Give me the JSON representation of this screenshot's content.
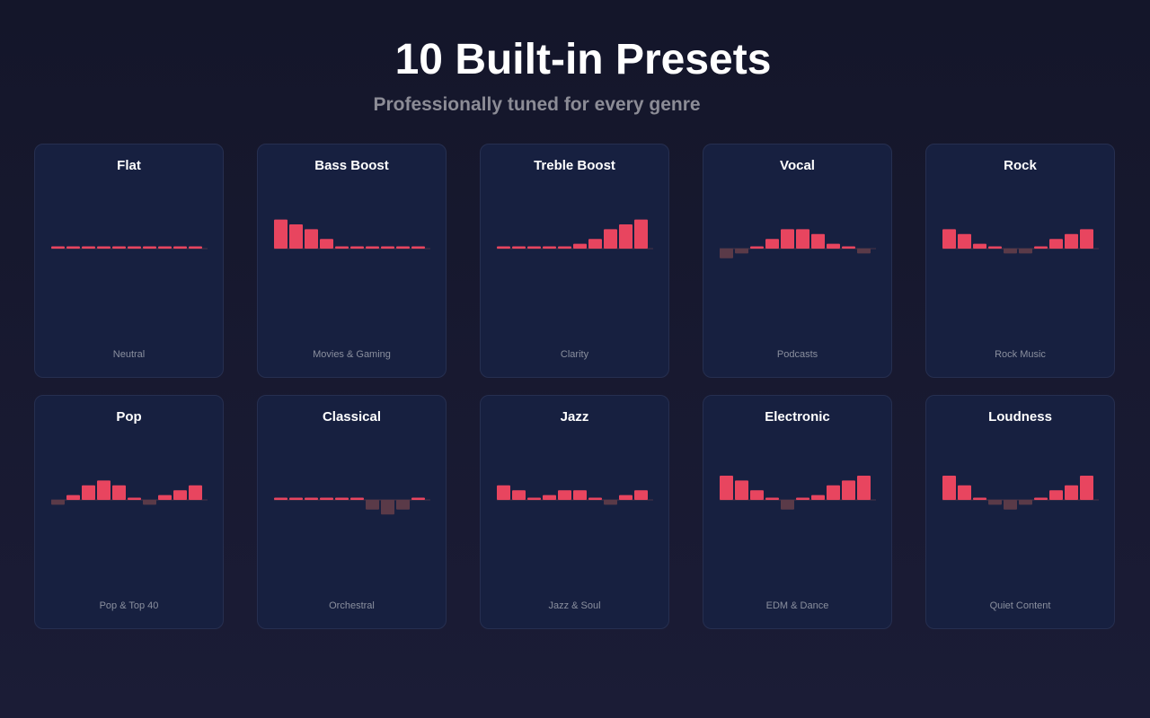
{
  "header": {
    "title": "10 Built-in Presets",
    "subtitle": "Professionally tuned for every genre"
  },
  "colors": {
    "boost": "#e8455f",
    "cut": "#5a3a48",
    "baseline": "#4a3548"
  },
  "presets": [
    {
      "name": "Flat",
      "description": "Neutral",
      "chart_data": {
        "type": "bar",
        "bands": 10,
        "values": [
          0,
          0,
          0,
          0,
          0,
          0,
          0,
          0,
          0,
          0
        ],
        "ylim": [
          -6,
          6
        ]
      }
    },
    {
      "name": "Bass Boost",
      "description": "Movies & Gaming",
      "chart_data": {
        "type": "bar",
        "bands": 10,
        "values": [
          6,
          5,
          4,
          2,
          0,
          0,
          0,
          0,
          0,
          0
        ],
        "ylim": [
          -6,
          6
        ]
      }
    },
    {
      "name": "Treble Boost",
      "description": "Clarity",
      "chart_data": {
        "type": "bar",
        "bands": 10,
        "values": [
          0,
          0,
          0,
          0,
          0,
          1,
          2,
          4,
          5,
          6
        ],
        "ylim": [
          -6,
          6
        ]
      }
    },
    {
      "name": "Vocal",
      "description": "Podcasts",
      "chart_data": {
        "type": "bar",
        "bands": 10,
        "values": [
          -2,
          -1,
          0,
          2,
          4,
          4,
          3,
          1,
          0,
          -1
        ],
        "ylim": [
          -6,
          6
        ]
      }
    },
    {
      "name": "Rock",
      "description": "Rock Music",
      "chart_data": {
        "type": "bar",
        "bands": 10,
        "values": [
          4,
          3,
          1,
          0,
          -1,
          -1,
          0,
          2,
          3,
          4
        ],
        "ylim": [
          -6,
          6
        ]
      }
    },
    {
      "name": "Pop",
      "description": "Pop & Top 40",
      "chart_data": {
        "type": "bar",
        "bands": 10,
        "values": [
          -1,
          1,
          3,
          4,
          3,
          0,
          -1,
          1,
          2,
          3
        ],
        "ylim": [
          -6,
          6
        ]
      }
    },
    {
      "name": "Classical",
      "description": "Orchestral",
      "chart_data": {
        "type": "bar",
        "bands": 10,
        "values": [
          0,
          0,
          0,
          0,
          0,
          0,
          -2,
          -3,
          -2,
          0
        ],
        "ylim": [
          -6,
          6
        ]
      }
    },
    {
      "name": "Jazz",
      "description": "Jazz & Soul",
      "chart_data": {
        "type": "bar",
        "bands": 10,
        "values": [
          3,
          2,
          0,
          1,
          2,
          2,
          0,
          -1,
          1,
          2
        ],
        "ylim": [
          -6,
          6
        ]
      }
    },
    {
      "name": "Electronic",
      "description": "EDM & Dance",
      "chart_data": {
        "type": "bar",
        "bands": 10,
        "values": [
          5,
          4,
          2,
          0,
          -2,
          0,
          1,
          3,
          4,
          5
        ],
        "ylim": [
          -6,
          6
        ]
      }
    },
    {
      "name": "Loudness",
      "description": "Quiet Content",
      "chart_data": {
        "type": "bar",
        "bands": 10,
        "values": [
          5,
          3,
          0,
          -1,
          -2,
          -1,
          0,
          2,
          3,
          5
        ],
        "ylim": [
          -6,
          6
        ]
      }
    }
  ]
}
